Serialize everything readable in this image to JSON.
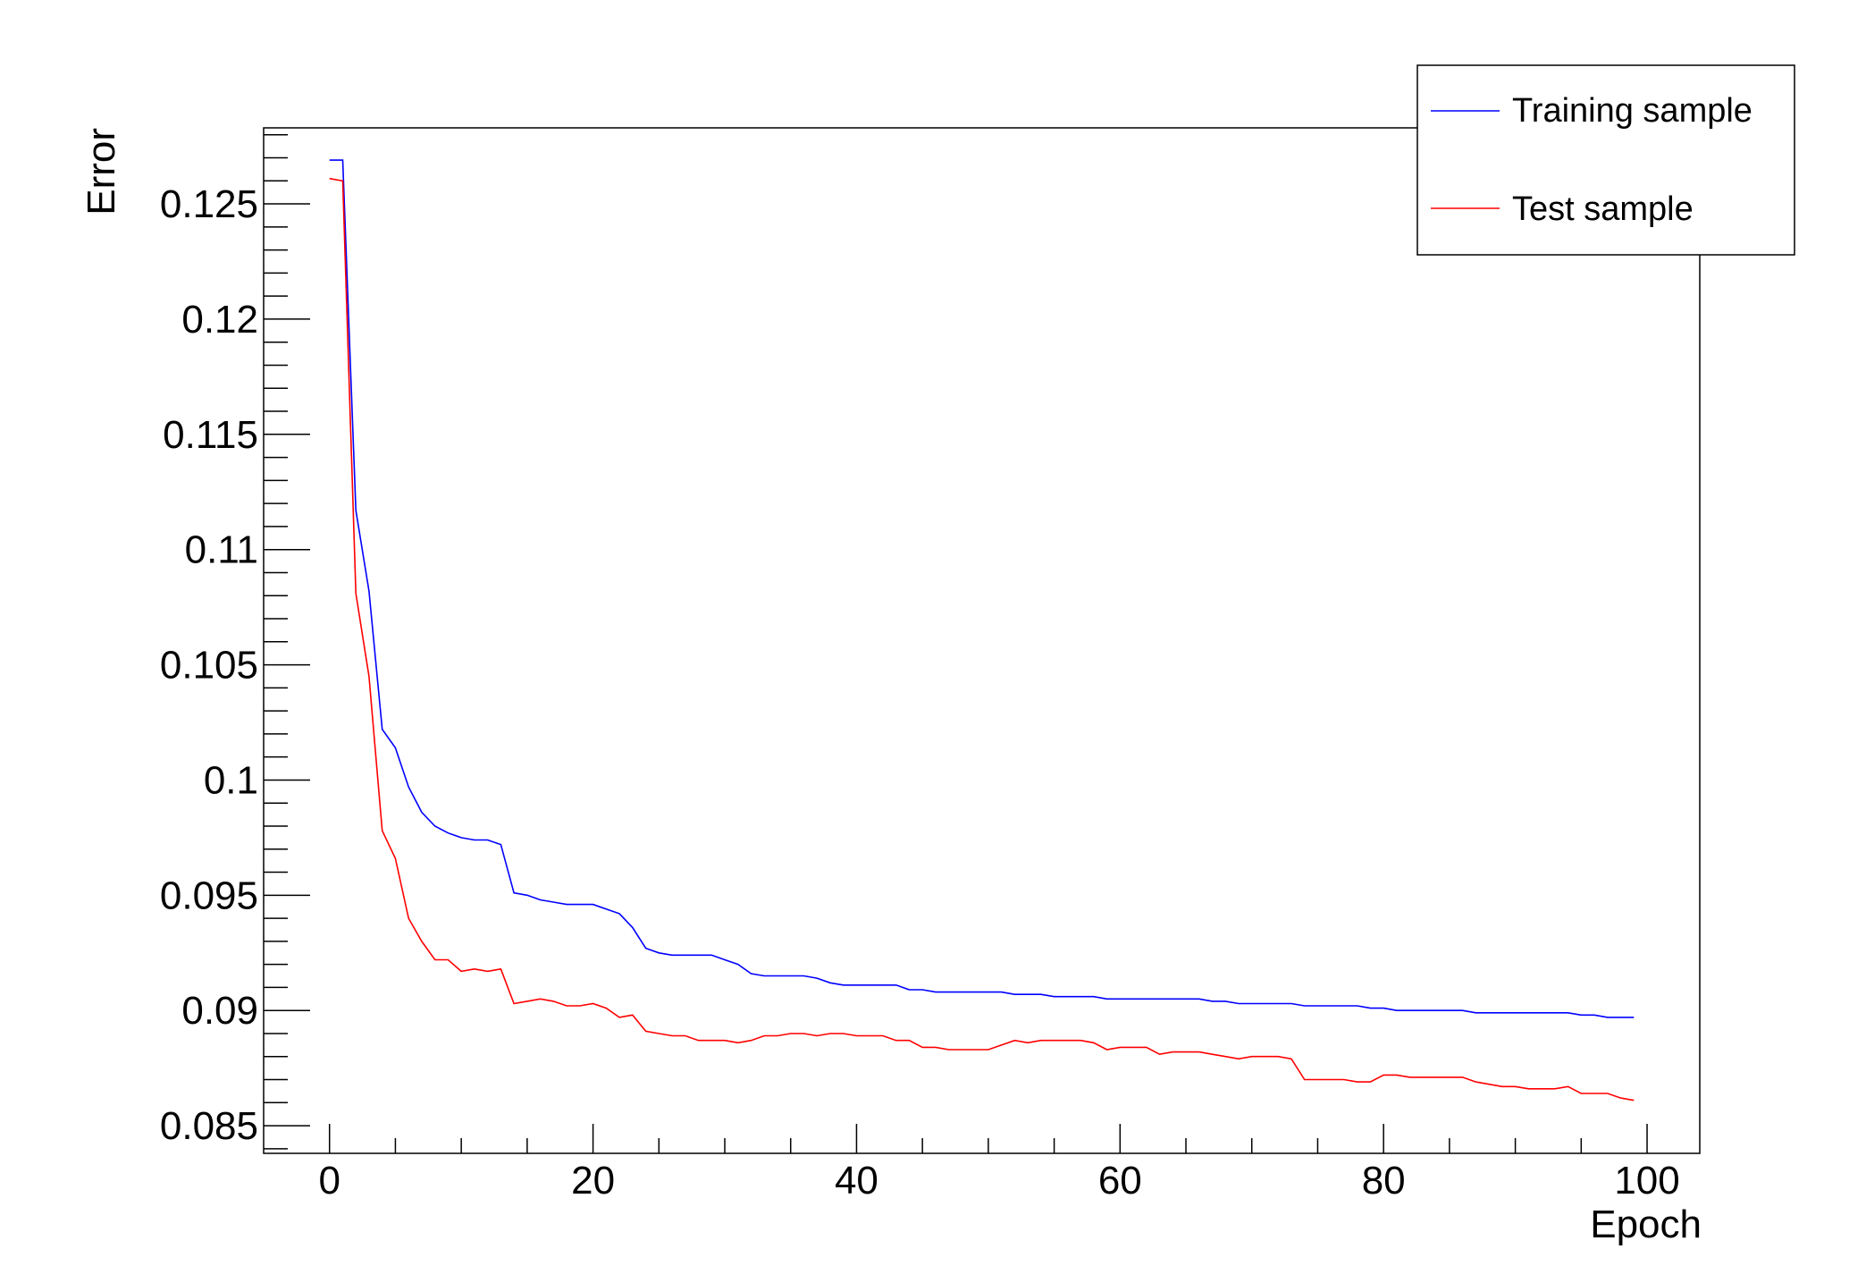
{
  "chart_data": {
    "type": "line",
    "title": "",
    "xlabel": "Epoch",
    "ylabel": "Error",
    "xlim": [
      -5,
      104
    ],
    "ylim": [
      0.0838,
      0.1283
    ],
    "x_ticks": [
      0,
      20,
      40,
      60,
      80,
      100
    ],
    "x_tick_labels": [
      "0",
      "20",
      "40",
      "60",
      "80",
      "100"
    ],
    "y_ticks": [
      0.085,
      0.09,
      0.095,
      0.1,
      0.105,
      0.11,
      0.115,
      0.12,
      0.125
    ],
    "y_tick_labels": [
      "0.085",
      "0.09",
      "0.095",
      "0.1",
      "0.105",
      "0.11",
      "0.115",
      "0.12",
      "0.125"
    ],
    "grid": false,
    "legend_position": "top-right",
    "series": [
      {
        "name": "Training sample",
        "color": "#0000ff",
        "x": [
          0,
          1,
          2,
          3,
          4,
          5,
          6,
          7,
          8,
          9,
          10,
          11,
          12,
          13,
          14,
          15,
          16,
          17,
          18,
          19,
          20,
          21,
          22,
          23,
          24,
          25,
          26,
          27,
          28,
          29,
          30,
          31,
          32,
          33,
          34,
          35,
          36,
          37,
          38,
          39,
          40,
          41,
          42,
          43,
          44,
          45,
          46,
          47,
          48,
          49,
          50,
          51,
          52,
          53,
          54,
          55,
          56,
          57,
          58,
          59,
          60,
          61,
          62,
          63,
          64,
          65,
          66,
          67,
          68,
          69,
          70,
          71,
          72,
          73,
          74,
          75,
          76,
          77,
          78,
          79,
          80,
          81,
          82,
          83,
          84,
          85,
          86,
          87,
          88,
          89,
          90,
          91,
          92,
          93,
          94,
          95,
          96,
          97,
          98,
          99
        ],
        "values": [
          0.1269,
          0.1269,
          0.1117,
          0.1082,
          0.1022,
          0.1014,
          0.0997,
          0.0986,
          0.098,
          0.0977,
          0.0975,
          0.0974,
          0.0974,
          0.0972,
          0.0951,
          0.095,
          0.0948,
          0.0947,
          0.0946,
          0.0946,
          0.0946,
          0.0944,
          0.0942,
          0.0936,
          0.0927,
          0.0925,
          0.0924,
          0.0924,
          0.0924,
          0.0924,
          0.0922,
          0.092,
          0.0916,
          0.0915,
          0.0915,
          0.0915,
          0.0915,
          0.0914,
          0.0912,
          0.0911,
          0.0911,
          0.0911,
          0.0911,
          0.0911,
          0.0909,
          0.0909,
          0.0908,
          0.0908,
          0.0908,
          0.0908,
          0.0908,
          0.0908,
          0.0907,
          0.0907,
          0.0907,
          0.0906,
          0.0906,
          0.0906,
          0.0906,
          0.0905,
          0.0905,
          0.0905,
          0.0905,
          0.0905,
          0.0905,
          0.0905,
          0.0905,
          0.0904,
          0.0904,
          0.0903,
          0.0903,
          0.0903,
          0.0903,
          0.0903,
          0.0902,
          0.0902,
          0.0902,
          0.0902,
          0.0902,
          0.0901,
          0.0901,
          0.09,
          0.09,
          0.09,
          0.09,
          0.09,
          0.09,
          0.0899,
          0.0899,
          0.0899,
          0.0899,
          0.0899,
          0.0899,
          0.0899,
          0.0899,
          0.0898,
          0.0898,
          0.0897,
          0.0897,
          0.0897
        ]
      },
      {
        "name": "Test sample",
        "color": "#ff0000",
        "x": [
          0,
          1,
          2,
          3,
          4,
          5,
          6,
          7,
          8,
          9,
          10,
          11,
          12,
          13,
          14,
          15,
          16,
          17,
          18,
          19,
          20,
          21,
          22,
          23,
          24,
          25,
          26,
          27,
          28,
          29,
          30,
          31,
          32,
          33,
          34,
          35,
          36,
          37,
          38,
          39,
          40,
          41,
          42,
          43,
          44,
          45,
          46,
          47,
          48,
          49,
          50,
          51,
          52,
          53,
          54,
          55,
          56,
          57,
          58,
          59,
          60,
          61,
          62,
          63,
          64,
          65,
          66,
          67,
          68,
          69,
          70,
          71,
          72,
          73,
          74,
          75,
          76,
          77,
          78,
          79,
          80,
          81,
          82,
          83,
          84,
          85,
          86,
          87,
          88,
          89,
          90,
          91,
          92,
          93,
          94,
          95,
          96,
          97,
          98,
          99
        ],
        "values": [
          0.1261,
          0.126,
          0.1081,
          0.1045,
          0.0978,
          0.0966,
          0.094,
          0.093,
          0.0922,
          0.0922,
          0.0917,
          0.0918,
          0.0917,
          0.0918,
          0.0903,
          0.0904,
          0.0905,
          0.0904,
          0.0902,
          0.0902,
          0.0903,
          0.0901,
          0.0897,
          0.0898,
          0.0891,
          0.089,
          0.0889,
          0.0889,
          0.0887,
          0.0887,
          0.0887,
          0.0886,
          0.0887,
          0.0889,
          0.0889,
          0.089,
          0.089,
          0.0889,
          0.089,
          0.089,
          0.0889,
          0.0889,
          0.0889,
          0.0887,
          0.0887,
          0.0884,
          0.0884,
          0.0883,
          0.0883,
          0.0883,
          0.0883,
          0.0885,
          0.0887,
          0.0886,
          0.0887,
          0.0887,
          0.0887,
          0.0887,
          0.0886,
          0.0883,
          0.0884,
          0.0884,
          0.0884,
          0.0881,
          0.0882,
          0.0882,
          0.0882,
          0.0881,
          0.088,
          0.0879,
          0.088,
          0.088,
          0.088,
          0.0879,
          0.087,
          0.087,
          0.087,
          0.087,
          0.0869,
          0.0869,
          0.0872,
          0.0872,
          0.0871,
          0.0871,
          0.0871,
          0.0871,
          0.0871,
          0.0869,
          0.0868,
          0.0867,
          0.0867,
          0.0866,
          0.0866,
          0.0866,
          0.0867,
          0.0864,
          0.0864,
          0.0864,
          0.0862,
          0.0861
        ]
      }
    ]
  }
}
